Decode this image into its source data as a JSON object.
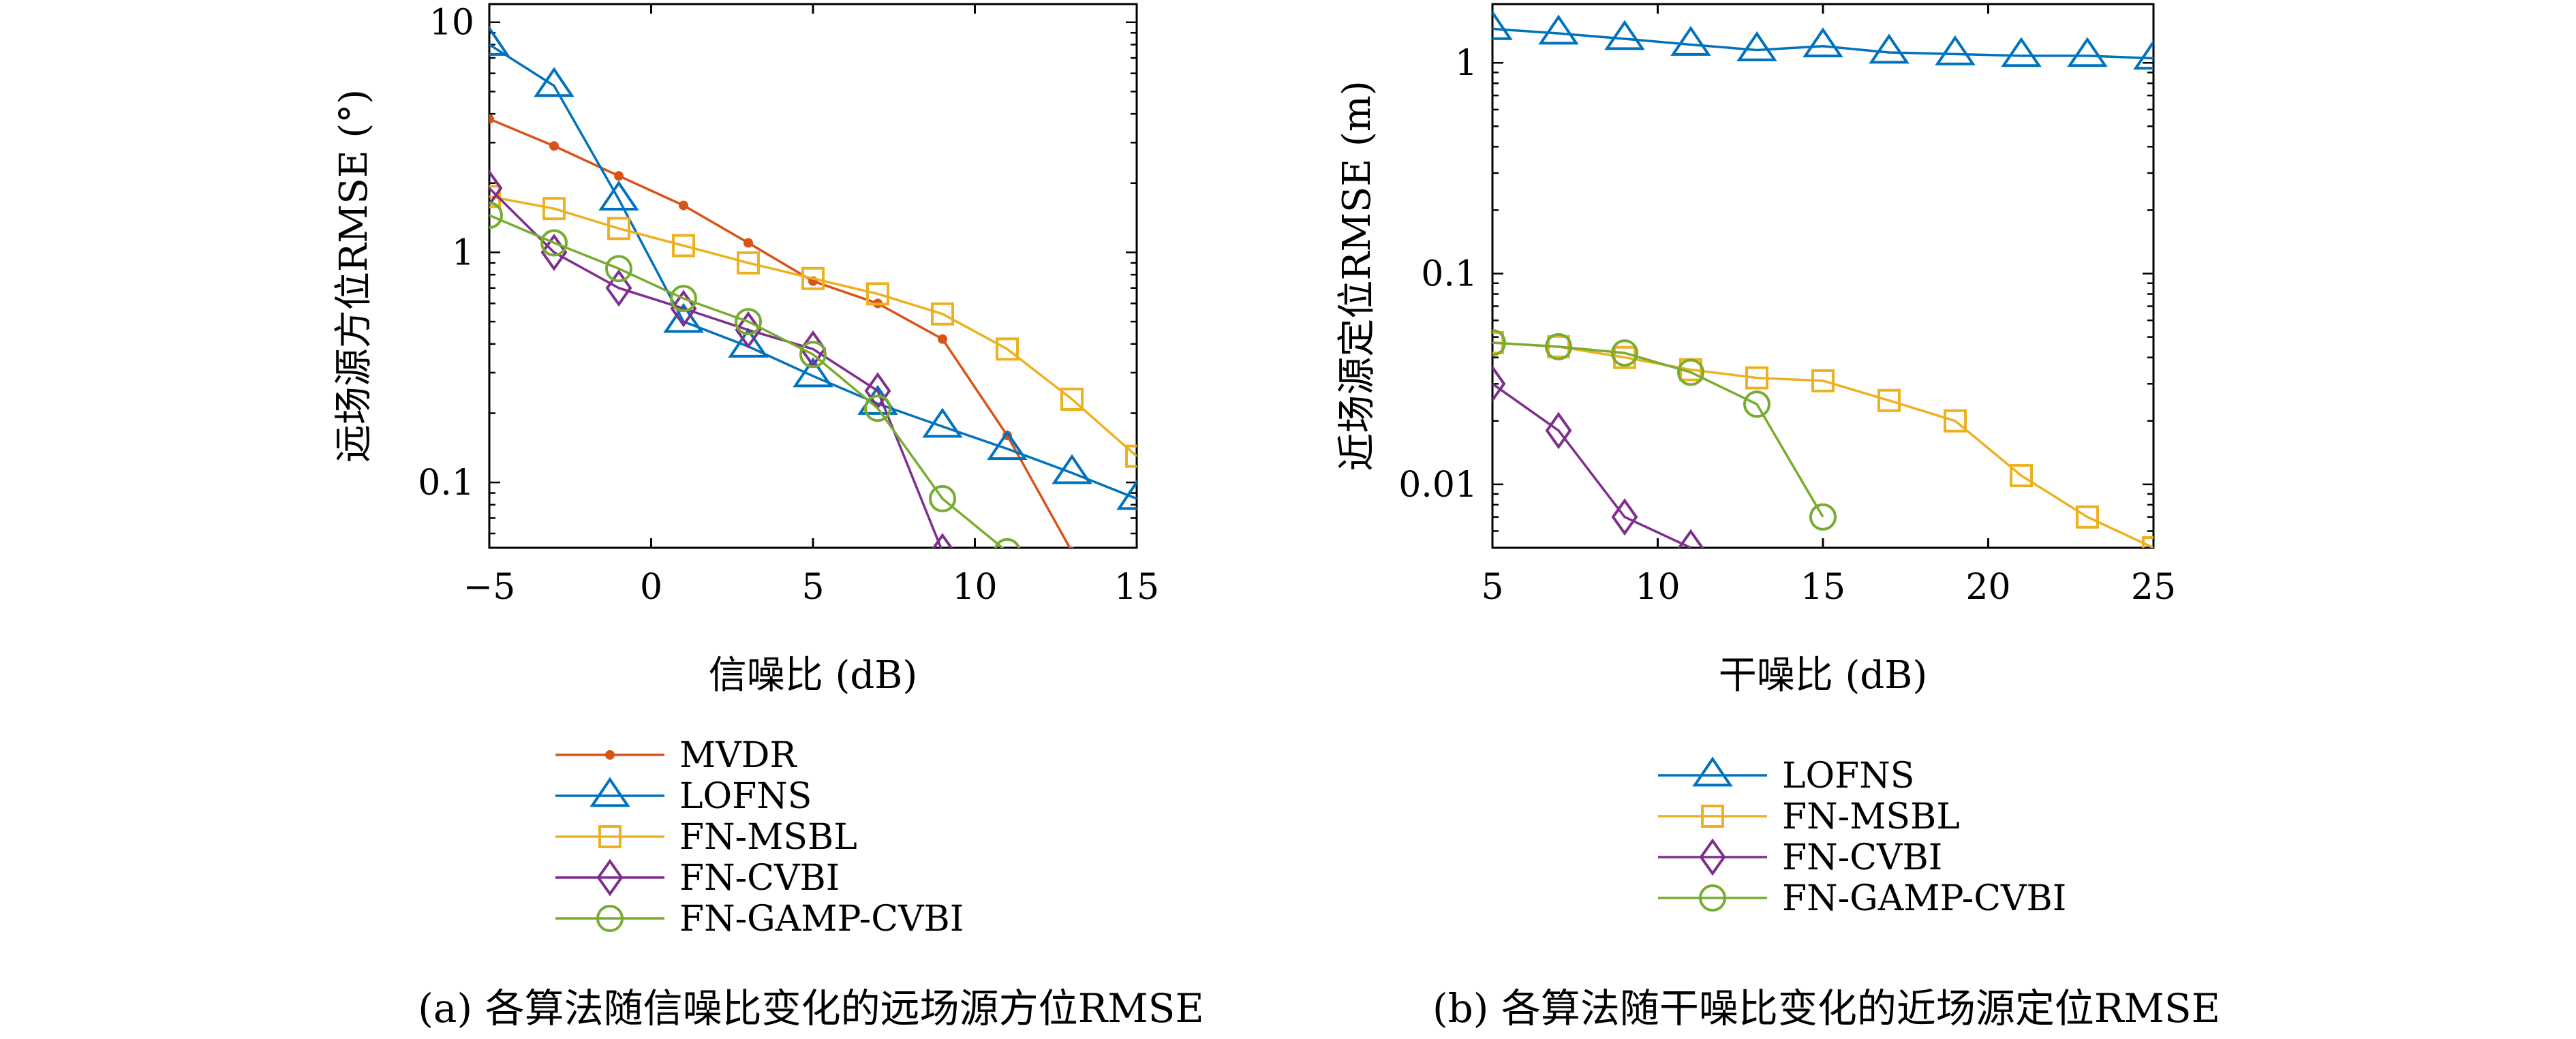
{
  "chart_data": [
    {
      "id": "a",
      "type": "line",
      "caption": "(a) 各算法随信噪比变化的远场源方位RMSE",
      "xlabel": "信噪比 (dB)",
      "ylabel": "远场源方位RMSE (°)",
      "xscale": "linear",
      "yscale": "log",
      "xlim": [
        -5,
        15
      ],
      "ylim": [
        0.052,
        12
      ],
      "xticks": [
        -5,
        0,
        5,
        10,
        15
      ],
      "xtick_labels": [
        "−5",
        "0",
        "5",
        "10",
        "15"
      ],
      "yticks": [
        0.1,
        1,
        10
      ],
      "ytick_labels": [
        "0.1",
        "1",
        "10"
      ],
      "grid": false,
      "legend_position": "below",
      "series": [
        {
          "name": "MVDR",
          "color": "#d95319",
          "marker": "dot",
          "x": [
            -5,
            -3,
            -1,
            1,
            3,
            5,
            7,
            9,
            11,
            13
          ],
          "y": [
            3.8,
            2.9,
            2.15,
            1.6,
            1.1,
            0.75,
            0.6,
            0.42,
            0.16,
            0.05
          ]
        },
        {
          "name": "LOFNS",
          "color": "#0072bd",
          "marker": "triangle",
          "x": [
            -5,
            -3,
            -1,
            1,
            3,
            5,
            7,
            9,
            11,
            13,
            15
          ],
          "y": [
            8.0,
            5.3,
            1.7,
            0.5,
            0.39,
            0.29,
            0.22,
            0.175,
            0.14,
            0.11,
            0.085
          ]
        },
        {
          "name": "FN-MSBL",
          "color": "#edb120",
          "marker": "square",
          "x": [
            -5,
            -3,
            -1,
            1,
            3,
            5,
            7,
            9,
            11,
            13,
            15
          ],
          "y": [
            1.75,
            1.55,
            1.27,
            1.07,
            0.9,
            0.77,
            0.66,
            0.54,
            0.38,
            0.23,
            0.13
          ]
        },
        {
          "name": "FN-CVBI",
          "color": "#7e2f8e",
          "marker": "diamond",
          "x": [
            -5,
            -3,
            -1,
            1,
            3,
            5,
            7,
            9
          ],
          "y": [
            1.9,
            1.0,
            0.7,
            0.57,
            0.46,
            0.38,
            0.25,
            0.05
          ]
        },
        {
          "name": "FN-GAMP-CVBI",
          "color": "#77ac30",
          "marker": "circle",
          "x": [
            -5,
            -3,
            -1,
            1,
            3,
            5,
            7,
            9,
            11
          ],
          "y": [
            1.45,
            1.1,
            0.85,
            0.63,
            0.5,
            0.36,
            0.21,
            0.085,
            0.05
          ]
        }
      ]
    },
    {
      "id": "b",
      "type": "line",
      "caption": "(b) 各算法随干噪比变化的近场源定位RMSE",
      "xlabel": "干噪比 (dB)",
      "ylabel": "近场源定位RMSE (m)",
      "xscale": "linear",
      "yscale": "log",
      "xlim": [
        5,
        25
      ],
      "ylim": [
        0.005,
        1.9
      ],
      "xticks": [
        5,
        10,
        15,
        20,
        25
      ],
      "xtick_labels": [
        "5",
        "10",
        "15",
        "20",
        "25"
      ],
      "yticks": [
        0.01,
        0.1,
        1
      ],
      "ytick_labels": [
        "0.01",
        "0.1",
        "1"
      ],
      "grid": false,
      "legend_position": "below",
      "series": [
        {
          "name": "LOFNS",
          "color": "#0072bd",
          "marker": "triangle",
          "x": [
            5,
            7,
            9,
            11,
            13,
            15,
            17,
            19,
            21,
            23,
            25
          ],
          "y": [
            1.45,
            1.38,
            1.3,
            1.22,
            1.15,
            1.2,
            1.12,
            1.1,
            1.08,
            1.08,
            1.05
          ]
        },
        {
          "name": "FN-MSBL",
          "color": "#edb120",
          "marker": "square",
          "x": [
            5,
            7,
            9,
            11,
            13,
            15,
            17,
            19,
            21,
            23,
            25
          ],
          "y": [
            0.047,
            0.045,
            0.04,
            0.035,
            0.032,
            0.031,
            0.025,
            0.02,
            0.011,
            0.007,
            0.005
          ]
        },
        {
          "name": "FN-CVBI",
          "color": "#7e2f8e",
          "marker": "diamond",
          "x": [
            5,
            7,
            9,
            11
          ],
          "y": [
            0.03,
            0.018,
            0.007,
            0.005
          ]
        },
        {
          "name": "FN-GAMP-CVBI",
          "color": "#77ac30",
          "marker": "circle",
          "x": [
            5,
            7,
            9,
            11,
            13,
            15
          ],
          "y": [
            0.047,
            0.045,
            0.042,
            0.034,
            0.024,
            0.007
          ]
        }
      ]
    }
  ]
}
